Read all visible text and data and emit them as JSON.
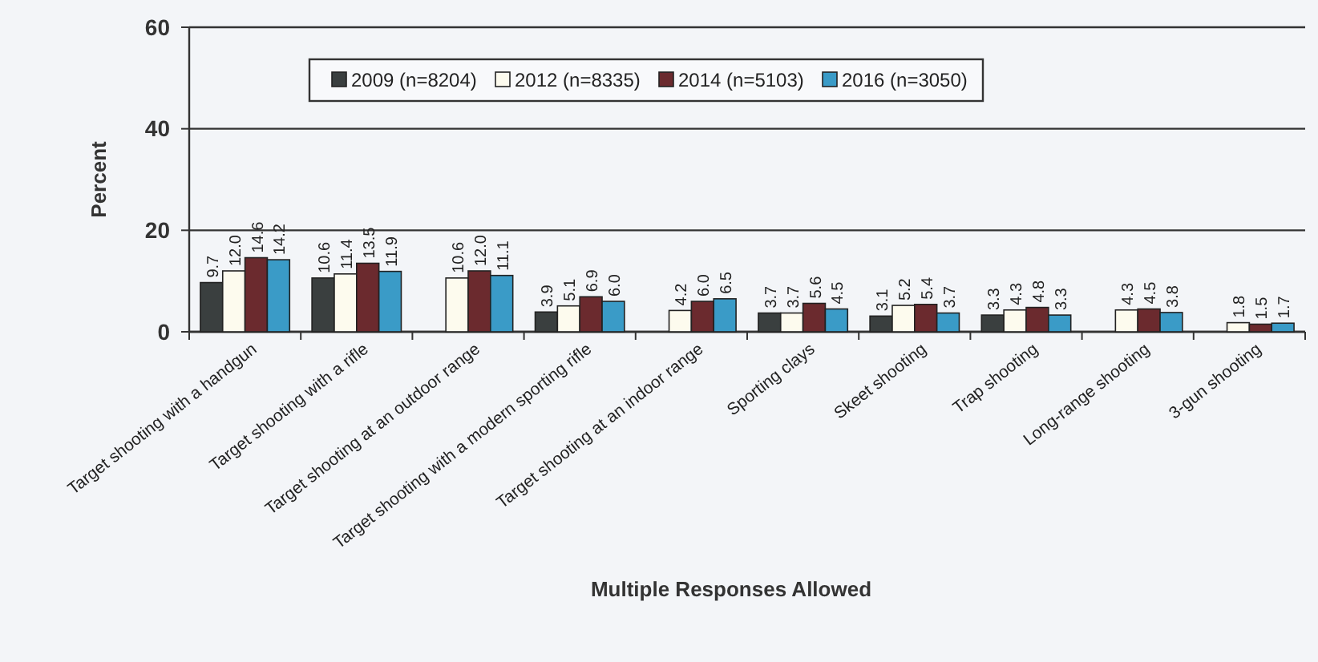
{
  "chart_data": {
    "type": "bar",
    "ylabel": "Percent",
    "xlabel": "Multiple Responses Allowed",
    "categories": [
      "Target shooting with a handgun",
      "Target shooting with a rifle",
      "Target shooting at an outdoor range",
      "Target shooting with a modern sporting rifle",
      "Target shooting at an indoor range",
      "Sporting clays",
      "Skeet shooting",
      "Trap shooting",
      "Long-range shooting",
      "3-gun shooting"
    ],
    "series": [
      {
        "name": "2009 (n=8204)",
        "color": "#3a3f3f",
        "values": [
          9.7,
          10.6,
          null,
          3.9,
          null,
          3.7,
          3.1,
          3.3,
          null,
          null
        ],
        "value_labels": [
          "9.7",
          "10.6",
          null,
          "3.9",
          null,
          "3.7",
          "3.1",
          "3.3",
          null,
          null
        ]
      },
      {
        "name": "2012 (n=8335)",
        "color": "#fdfbee",
        "values": [
          12.0,
          11.4,
          10.6,
          5.1,
          4.2,
          3.7,
          5.2,
          4.3,
          4.3,
          1.8
        ],
        "value_labels": [
          "12.0",
          "11.4",
          "10.6",
          "5.1",
          "4.2",
          "3.7",
          "5.2",
          "4.3",
          "4.3",
          "1.8"
        ]
      },
      {
        "name": "2014 (n=5103)",
        "color": "#6b2a2e",
        "values": [
          14.6,
          13.5,
          12.0,
          6.9,
          6.0,
          5.6,
          5.4,
          4.8,
          4.5,
          1.5
        ],
        "value_labels": [
          "14.6",
          "13.5",
          "12.0",
          "6.9",
          "6.0",
          "5.6",
          "5.4",
          "4.8",
          "4.5",
          "1.5"
        ]
      },
      {
        "name": "2016 (n=3050)",
        "color": "#3a9bc7",
        "values": [
          14.2,
          11.9,
          11.1,
          6.0,
          6.5,
          4.5,
          3.7,
          3.3,
          3.8,
          1.7
        ],
        "value_labels": [
          "14.2",
          "11.9",
          "11.1",
          "6.0",
          "6.5",
          "4.5",
          "3.7",
          "3.3",
          "3.8",
          "1.7"
        ]
      }
    ],
    "ylim": [
      0,
      60
    ],
    "yticks": [
      0,
      20,
      40,
      60
    ],
    "grid": "y",
    "legend": "top"
  }
}
